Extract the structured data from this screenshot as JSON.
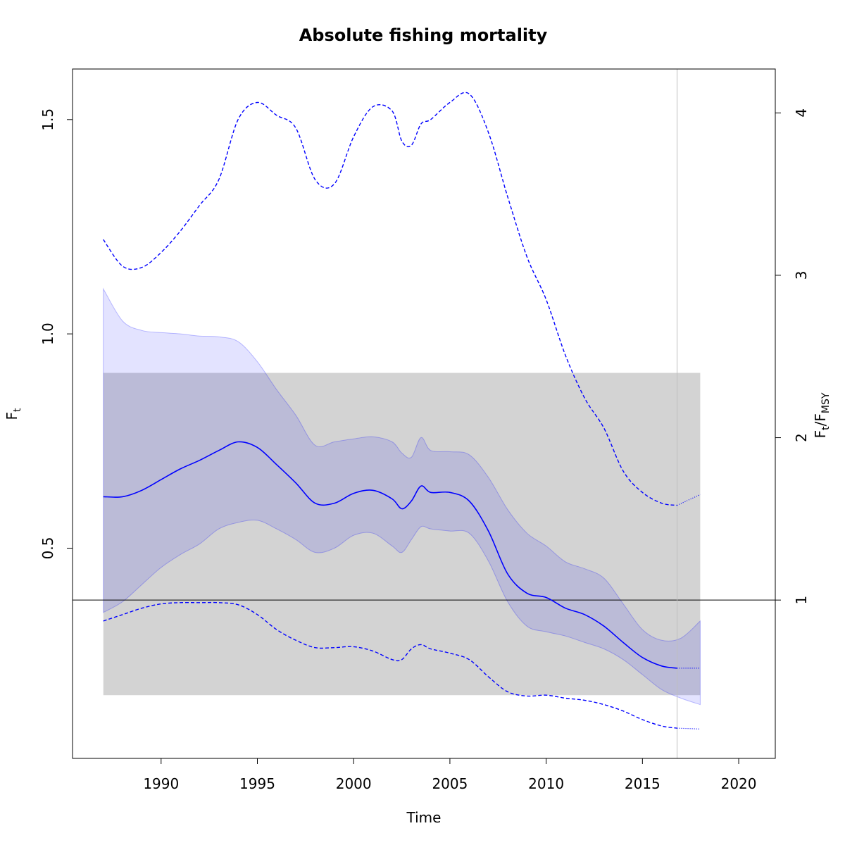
{
  "chart_data": {
    "type": "line",
    "title": "Absolute fishing mortality",
    "xlabel": "Time",
    "ylabel": {
      "main": "F",
      "sub": "t"
    },
    "y2label": {
      "a": "F",
      "a_sub": "t",
      "slash": "/",
      "b": "F",
      "b_sub": "MSY"
    },
    "xlim": [
      1985.4,
      2021.9
    ],
    "ylim": [
      0.0095,
      1.618
    ],
    "y2_scale_ratio": 0.3789,
    "x_ticks": [
      1990,
      1995,
      2000,
      2005,
      2010,
      2015,
      2020
    ],
    "x_tick_labels": [
      "1990",
      "1995",
      "2000",
      "2005",
      "2010",
      "2015",
      "2020"
    ],
    "y_ticks": [
      0.5,
      1.0,
      1.5
    ],
    "y_tick_labels": [
      "0.5",
      "1.0",
      "1.5"
    ],
    "y2_ticks": [
      1,
      2,
      3,
      4
    ],
    "y2_tick_labels": [
      "1",
      "2",
      "3",
      "4"
    ],
    "colors": {
      "line": "#0000ff",
      "ci_fill": "rgba(0,0,255,0.11)",
      "ci_edge": "rgba(0,0,255,0.25)",
      "band_fill": "#d3d3d3",
      "ref_line": "#000000",
      "vline": "#bebebe"
    },
    "shaded_band": {
      "x": [
        1987,
        2018
      ],
      "y": [
        0.157,
        0.909
      ]
    },
    "ref_line_y": 0.379,
    "forecast_start_x": 2016.8,
    "series": [
      {
        "role": "estimate",
        "x": [
          1987,
          1988,
          1989,
          1990,
          1991,
          1992,
          1993,
          1994,
          1995,
          1996,
          1997,
          1998,
          1999,
          2000,
          2001,
          2002,
          2002.5,
          2003,
          2003.5,
          2004,
          2005,
          2006,
          2007,
          2008,
          2009,
          2010,
          2011,
          2012,
          2013,
          2014,
          2015,
          2016,
          2016.8
        ],
        "values": [
          0.62,
          0.62,
          0.635,
          0.66,
          0.685,
          0.705,
          0.728,
          0.748,
          0.735,
          0.695,
          0.652,
          0.605,
          0.605,
          0.628,
          0.635,
          0.615,
          0.592,
          0.61,
          0.645,
          0.63,
          0.63,
          0.61,
          0.54,
          0.44,
          0.395,
          0.385,
          0.36,
          0.345,
          0.318,
          0.28,
          0.245,
          0.225,
          0.22
        ]
      },
      {
        "role": "estimate-forecast",
        "x": [
          2016.8,
          2018
        ],
        "values": [
          0.22,
          0.22
        ]
      },
      {
        "role": "ci-upper",
        "x": [
          1987,
          1988,
          1989,
          1990,
          1991,
          1992,
          1993,
          1994,
          1995,
          1996,
          1997,
          1998,
          1999,
          2000,
          2001,
          2002,
          2002.5,
          2003,
          2003.5,
          2004,
          2005,
          2006,
          2007,
          2008,
          2009,
          2010,
          2011,
          2012,
          2013,
          2014,
          2015,
          2016,
          2017,
          2018
        ],
        "values": [
          1.105,
          1.03,
          1.008,
          1.003,
          1.0,
          0.995,
          0.993,
          0.982,
          0.935,
          0.87,
          0.81,
          0.74,
          0.748,
          0.755,
          0.76,
          0.748,
          0.722,
          0.712,
          0.758,
          0.728,
          0.725,
          0.718,
          0.665,
          0.59,
          0.535,
          0.505,
          0.468,
          0.452,
          0.43,
          0.37,
          0.31,
          0.285,
          0.29,
          0.33
        ]
      },
      {
        "role": "ci-lower",
        "x": [
          1987,
          1988,
          1989,
          1990,
          1991,
          1992,
          1993,
          1994,
          1995,
          1996,
          1997,
          1998,
          1999,
          2000,
          2001,
          2002,
          2002.5,
          2003,
          2003.5,
          2004,
          2005,
          2006,
          2007,
          2008,
          2009,
          2010,
          2011,
          2012,
          2013,
          2014,
          2015,
          2016,
          2017,
          2018
        ],
        "values": [
          0.35,
          0.375,
          0.415,
          0.455,
          0.485,
          0.51,
          0.545,
          0.56,
          0.565,
          0.545,
          0.52,
          0.49,
          0.5,
          0.53,
          0.535,
          0.505,
          0.49,
          0.52,
          0.55,
          0.545,
          0.54,
          0.535,
          0.47,
          0.375,
          0.318,
          0.305,
          0.295,
          0.28,
          0.265,
          0.24,
          0.205,
          0.17,
          0.15,
          0.135
        ]
      },
      {
        "role": "pred-upper",
        "x": [
          1987,
          1988,
          1989,
          1990,
          1991,
          1992,
          1993,
          1994,
          1995,
          1996,
          1997,
          1998,
          1999,
          2000,
          2001,
          2002,
          2002.5,
          2003,
          2003.5,
          2004,
          2005,
          2006,
          2007,
          2008,
          2009,
          2010,
          2011,
          2012,
          2013,
          2014,
          2015,
          2016,
          2016.8
        ],
        "values": [
          1.22,
          1.158,
          1.155,
          1.19,
          1.24,
          1.3,
          1.36,
          1.5,
          1.54,
          1.51,
          1.48,
          1.36,
          1.35,
          1.46,
          1.53,
          1.52,
          1.45,
          1.44,
          1.49,
          1.5,
          1.54,
          1.56,
          1.47,
          1.32,
          1.18,
          1.08,
          0.95,
          0.85,
          0.78,
          0.68,
          0.63,
          0.605,
          0.6
        ]
      },
      {
        "role": "pred-upper-forecast",
        "x": [
          2016.8,
          2018
        ],
        "values": [
          0.6,
          0.625
        ]
      },
      {
        "role": "pred-lower",
        "x": [
          1987,
          1988,
          1989,
          1990,
          1991,
          1992,
          1993,
          1994,
          1995,
          1996,
          1997,
          1998,
          1999,
          2000,
          2001,
          2002,
          2002.5,
          2003,
          2003.5,
          2004,
          2005,
          2006,
          2007,
          2008,
          2009,
          2010,
          2011,
          2012,
          2013,
          2014,
          2015,
          2016,
          2016.8
        ],
        "values": [
          0.33,
          0.345,
          0.36,
          0.37,
          0.373,
          0.373,
          0.373,
          0.368,
          0.345,
          0.31,
          0.285,
          0.268,
          0.268,
          0.27,
          0.26,
          0.24,
          0.24,
          0.265,
          0.275,
          0.265,
          0.255,
          0.24,
          0.2,
          0.165,
          0.155,
          0.157,
          0.15,
          0.145,
          0.135,
          0.12,
          0.1,
          0.085,
          0.08
        ]
      },
      {
        "role": "pred-lower-forecast",
        "x": [
          2016.8,
          2018
        ],
        "values": [
          0.08,
          0.078
        ]
      }
    ]
  }
}
